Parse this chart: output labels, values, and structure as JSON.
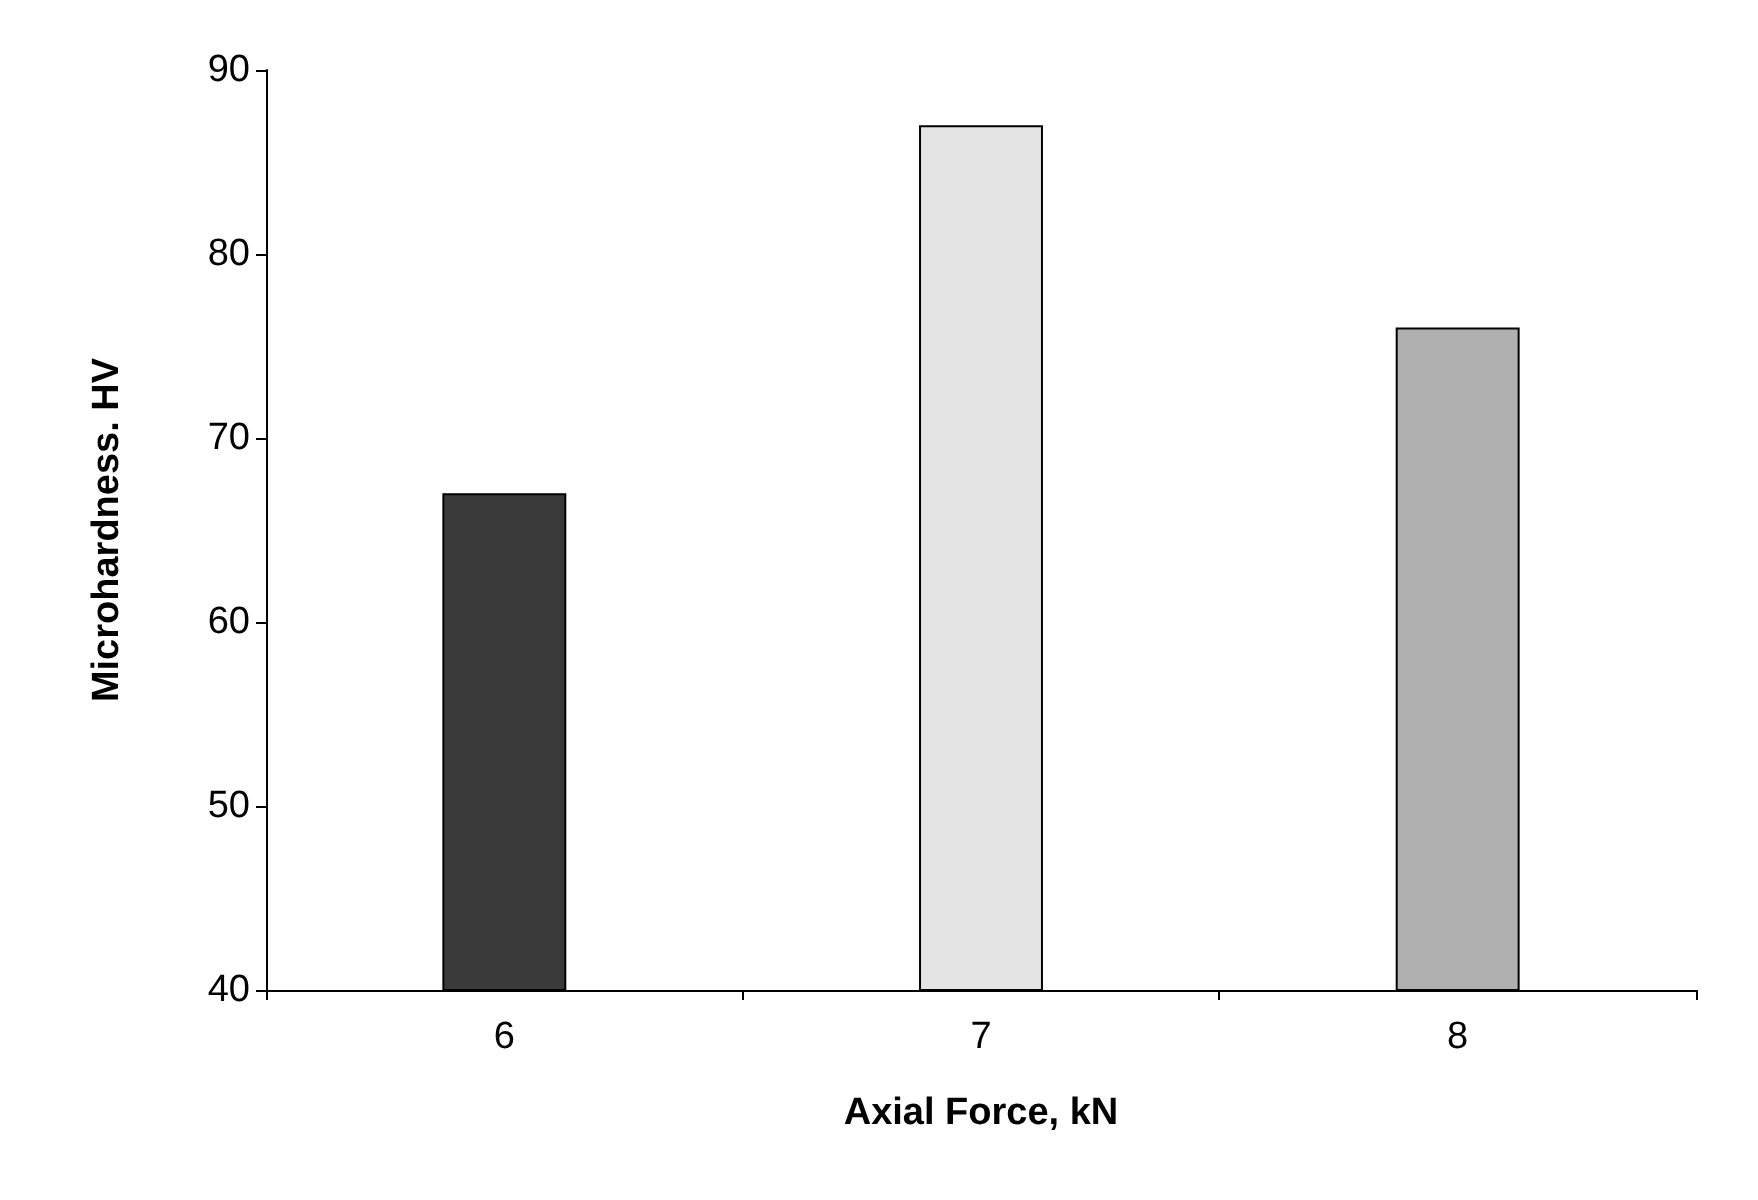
{
  "chart_data": {
    "type": "bar",
    "xlabel": "Axial Force, kN",
    "ylabel": "Microhardness. HV",
    "categories": [
      "6",
      "7",
      "8"
    ],
    "values": [
      67,
      87,
      76
    ],
    "colors": [
      "#3a3a3a",
      "#e4e4e4",
      "#b0b0b0"
    ],
    "ylim": [
      40,
      90
    ],
    "yticks": [
      40,
      50,
      60,
      70,
      80,
      90
    ],
    "grid": false
  }
}
